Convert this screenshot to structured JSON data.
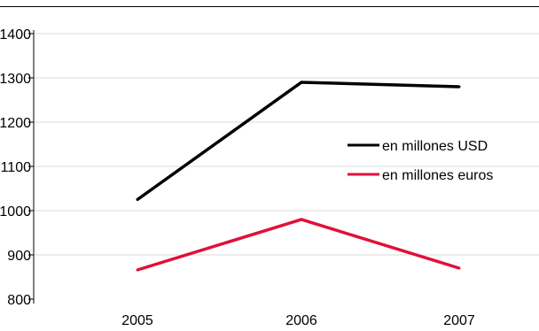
{
  "chart_data": {
    "type": "line",
    "categories": [
      "2005",
      "2006",
      "2007"
    ],
    "ylim": [
      800,
      1400
    ],
    "yticks": [
      800,
      900,
      1000,
      1100,
      1200,
      1300,
      1400
    ],
    "grid": true,
    "legend_position": "right",
    "series": [
      {
        "name": "en millones USD",
        "values": [
          1025,
          1290,
          1280
        ],
        "color": "#000000"
      },
      {
        "name": "en millones euros",
        "values": [
          866,
          980,
          870
        ],
        "color": "#e0103a"
      }
    ]
  }
}
